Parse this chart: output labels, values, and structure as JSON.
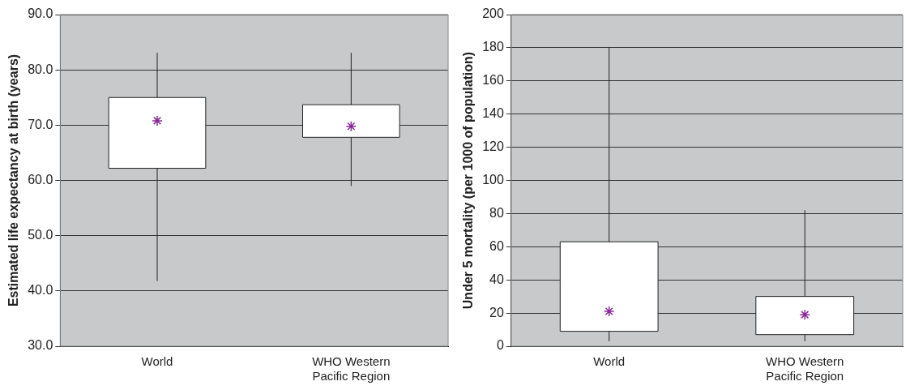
{
  "chart_data": [
    {
      "type": "box",
      "ylabel": "Estimated life expectancy at birth (years)",
      "categories": [
        "World",
        "WHO Western Pacific Region"
      ],
      "boxes": [
        {
          "low": 41.8,
          "q1": 62.2,
          "median": 70.8,
          "q3": 75.0,
          "high": 83.1
        },
        {
          "low": 59.0,
          "q1": 67.8,
          "median": 69.8,
          "q3": 73.7,
          "high": 83.1
        }
      ],
      "color": "#ffffff",
      "marker": "star",
      "ylim": [
        30,
        90
      ],
      "yticks": [
        {
          "value": 30,
          "label": "30.0"
        },
        {
          "value": 40,
          "label": "40.0"
        },
        {
          "value": 50,
          "label": "50.0"
        },
        {
          "value": 60,
          "label": "60.0"
        },
        {
          "value": 70,
          "label": "70.0"
        },
        {
          "value": 80,
          "label": "80.0"
        },
        {
          "value": 90,
          "label": "90.0"
        }
      ],
      "grid": "y",
      "legend": false
    },
    {
      "type": "box",
      "ylabel": "Under 5 mortality (per 1000 of population)",
      "categories": [
        "World",
        "WHO Western Pacific Region"
      ],
      "boxes": [
        {
          "low": 3,
          "q1": 9,
          "median": 21,
          "q3": 63,
          "high": 180
        },
        {
          "low": 3,
          "q1": 7,
          "median": 19,
          "q3": 30,
          "high": 82
        }
      ],
      "color": "#ffffff",
      "marker": "star",
      "ylim": [
        0,
        200
      ],
      "yticks": [
        0,
        20,
        40,
        60,
        80,
        100,
        120,
        140,
        160,
        180,
        200
      ],
      "grid": "y",
      "legend": false
    }
  ]
}
